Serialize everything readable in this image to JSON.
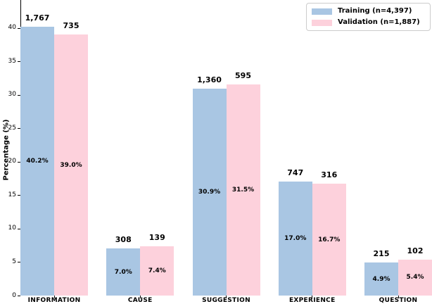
{
  "chart_data": {
    "type": "bar",
    "title": "",
    "xlabel": "",
    "ylabel": "Percentage (%)",
    "categories": [
      "INFORMATION",
      "CAUSE",
      "SUGGESTION",
      "EXPERIENCE",
      "QUESTION"
    ],
    "series": [
      {
        "name": "Training (n=4,397)",
        "color": "#a9c6e3",
        "values_pct": [
          40.2,
          7.0,
          30.9,
          17.0,
          4.9
        ],
        "pct_labels": [
          "40.2%",
          "7.0%",
          "30.9%",
          "17.0%",
          "4.9%"
        ],
        "count_labels": [
          "1,767",
          "308",
          "1,360",
          "747",
          "215"
        ]
      },
      {
        "name": "Validation (n=1,887)",
        "color": "#fdd1dc",
        "values_pct": [
          39.0,
          7.4,
          31.5,
          16.7,
          5.4
        ],
        "pct_labels": [
          "39.0%",
          "7.4%",
          "31.5%",
          "16.7%",
          "5.4%"
        ],
        "count_labels": [
          "735",
          "139",
          "595",
          "316",
          "102"
        ]
      }
    ],
    "yticks": [
      0,
      5,
      10,
      15,
      20,
      25,
      30,
      35,
      40
    ],
    "ylim": [
      0,
      44
    ],
    "grid": false,
    "legend_position": "upper right"
  }
}
